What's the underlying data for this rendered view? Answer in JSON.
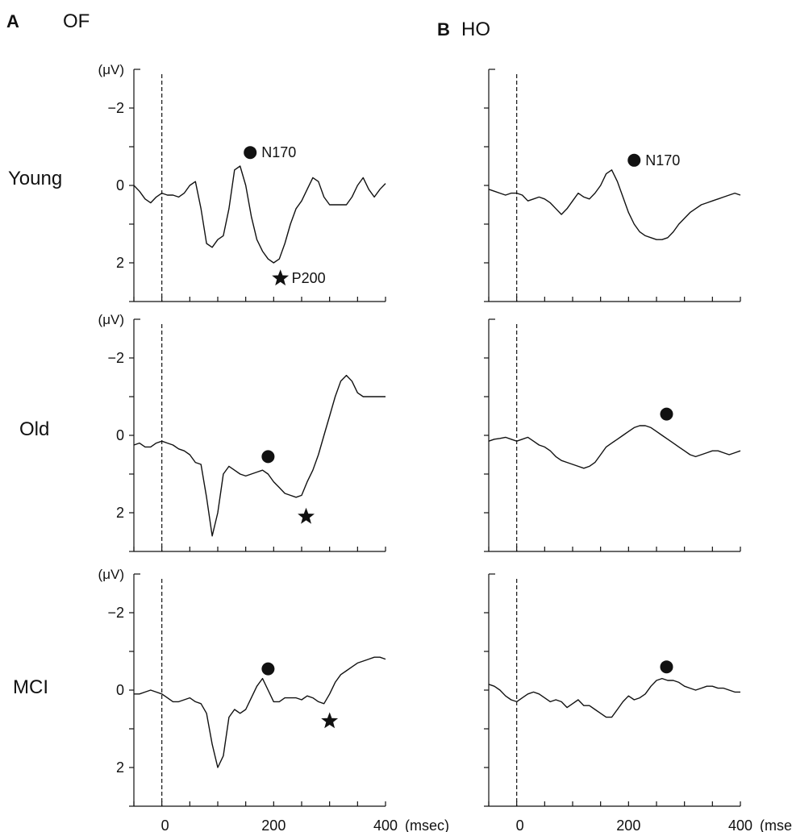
{
  "panels": [
    {
      "letter": "A",
      "condition": "OF"
    },
    {
      "letter": "B",
      "condition": "HO"
    }
  ],
  "rows": [
    "Young",
    "Old",
    "MCI"
  ],
  "y_unit": "(μV)",
  "x_unit": "(msec)",
  "x_tick_labels": [
    "0",
    "200",
    "400"
  ],
  "y_tick_labels": [
    "−2",
    "0",
    "2"
  ],
  "peak_labels": {
    "n170": "N170",
    "p200": "P200"
  },
  "colors": {
    "line": "#111111",
    "marker": "#111111"
  },
  "chart_data": {
    "type": "line",
    "title": "",
    "xlabel": "(msec)",
    "ylabel": "(μV)",
    "xlim": [
      -50,
      400
    ],
    "ylim": [
      3,
      -3
    ],
    "y_axis_inverted": true,
    "onset_marker_ms": 0,
    "panels": [
      {
        "condition": "OF",
        "row": "Young",
        "x": [
          -50,
          -40,
          -30,
          -20,
          -10,
          0,
          10,
          20,
          30,
          40,
          50,
          60,
          70,
          80,
          90,
          100,
          110,
          120,
          130,
          140,
          150,
          160,
          170,
          180,
          190,
          200,
          210,
          220,
          230,
          240,
          250,
          260,
          270,
          280,
          290,
          300,
          310,
          320,
          330,
          340,
          350,
          360,
          370,
          380,
          390,
          400
        ],
        "y": [
          0.0,
          0.15,
          0.35,
          0.45,
          0.3,
          0.2,
          0.25,
          0.25,
          0.3,
          0.2,
          0.0,
          -0.1,
          0.6,
          1.5,
          1.6,
          1.4,
          1.3,
          0.6,
          -0.4,
          -0.5,
          0.0,
          0.8,
          1.4,
          1.7,
          1.9,
          2.0,
          1.9,
          1.5,
          1.0,
          0.6,
          0.4,
          0.1,
          -0.2,
          -0.1,
          0.3,
          0.5,
          0.5,
          0.5,
          0.5,
          0.3,
          0.0,
          -0.2,
          0.1,
          0.3,
          0.1,
          -0.05
        ],
        "markers": [
          {
            "kind": "circle",
            "x": 158,
            "y": -0.85,
            "label": "N170"
          },
          {
            "kind": "star",
            "x": 212,
            "y": 2.4,
            "label": "P200"
          }
        ]
      },
      {
        "condition": "HO",
        "row": "Young",
        "x": [
          -50,
          -40,
          -30,
          -20,
          -10,
          0,
          10,
          20,
          30,
          40,
          50,
          60,
          70,
          80,
          90,
          100,
          110,
          120,
          130,
          140,
          150,
          160,
          170,
          180,
          190,
          200,
          210,
          220,
          230,
          240,
          250,
          260,
          270,
          280,
          290,
          300,
          310,
          320,
          330,
          340,
          350,
          360,
          370,
          380,
          390,
          400
        ],
        "y": [
          0.1,
          0.15,
          0.2,
          0.25,
          0.2,
          0.2,
          0.25,
          0.4,
          0.35,
          0.3,
          0.35,
          0.45,
          0.6,
          0.75,
          0.6,
          0.4,
          0.2,
          0.3,
          0.35,
          0.2,
          0.0,
          -0.3,
          -0.4,
          -0.1,
          0.3,
          0.7,
          1.0,
          1.2,
          1.3,
          1.35,
          1.4,
          1.4,
          1.35,
          1.2,
          1.0,
          0.85,
          0.7,
          0.6,
          0.5,
          0.45,
          0.4,
          0.35,
          0.3,
          0.25,
          0.2,
          0.25
        ],
        "markers": [
          {
            "kind": "circle",
            "x": 210,
            "y": -0.65,
            "label": "N170"
          }
        ]
      },
      {
        "condition": "OF",
        "row": "Old",
        "x": [
          -50,
          -40,
          -30,
          -20,
          -10,
          0,
          10,
          20,
          30,
          40,
          50,
          60,
          70,
          80,
          90,
          100,
          110,
          120,
          130,
          140,
          150,
          160,
          170,
          180,
          190,
          200,
          210,
          220,
          230,
          240,
          250,
          260,
          270,
          280,
          290,
          300,
          310,
          320,
          330,
          340,
          350,
          360,
          370,
          380,
          390,
          400
        ],
        "y": [
          0.25,
          0.2,
          0.3,
          0.3,
          0.2,
          0.15,
          0.2,
          0.25,
          0.35,
          0.4,
          0.5,
          0.7,
          0.75,
          1.6,
          2.6,
          2.0,
          1.0,
          0.8,
          0.9,
          1.0,
          1.05,
          1.0,
          0.95,
          0.9,
          1.0,
          1.2,
          1.35,
          1.5,
          1.55,
          1.6,
          1.55,
          1.2,
          0.9,
          0.5,
          0.0,
          -0.5,
          -1.0,
          -1.4,
          -1.55,
          -1.4,
          -1.1,
          -1.0,
          -1.0,
          -1.0,
          -1.0,
          -1.0
        ],
        "markers": [
          {
            "kind": "circle",
            "x": 190,
            "y": 0.55,
            "label": ""
          },
          {
            "kind": "star",
            "x": 258,
            "y": 2.1,
            "label": ""
          }
        ]
      },
      {
        "condition": "HO",
        "row": "Old",
        "x": [
          -50,
          -40,
          -30,
          -20,
          -10,
          0,
          10,
          20,
          30,
          40,
          50,
          60,
          70,
          80,
          90,
          100,
          110,
          120,
          130,
          140,
          150,
          160,
          170,
          180,
          190,
          200,
          210,
          220,
          230,
          240,
          250,
          260,
          270,
          280,
          290,
          300,
          310,
          320,
          330,
          340,
          350,
          360,
          370,
          380,
          390,
          400
        ],
        "y": [
          0.15,
          0.1,
          0.08,
          0.05,
          0.1,
          0.15,
          0.1,
          0.05,
          0.15,
          0.25,
          0.3,
          0.4,
          0.55,
          0.65,
          0.7,
          0.75,
          0.8,
          0.85,
          0.8,
          0.7,
          0.5,
          0.3,
          0.2,
          0.1,
          0.0,
          -0.1,
          -0.2,
          -0.25,
          -0.25,
          -0.2,
          -0.1,
          0.0,
          0.1,
          0.2,
          0.3,
          0.4,
          0.5,
          0.55,
          0.5,
          0.45,
          0.4,
          0.4,
          0.45,
          0.5,
          0.45,
          0.4
        ],
        "markers": [
          {
            "kind": "circle",
            "x": 268,
            "y": -0.55,
            "label": ""
          }
        ]
      },
      {
        "condition": "OF",
        "row": "MCI",
        "x": [
          -50,
          -40,
          -30,
          -20,
          -10,
          0,
          10,
          20,
          30,
          40,
          50,
          60,
          70,
          80,
          90,
          100,
          110,
          120,
          130,
          140,
          150,
          160,
          170,
          180,
          190,
          200,
          210,
          220,
          230,
          240,
          250,
          260,
          270,
          280,
          290,
          300,
          310,
          320,
          330,
          340,
          350,
          360,
          370,
          380,
          390,
          400
        ],
        "y": [
          0.1,
          0.1,
          0.05,
          0.0,
          0.05,
          0.1,
          0.2,
          0.3,
          0.3,
          0.25,
          0.2,
          0.3,
          0.35,
          0.6,
          1.4,
          2.0,
          1.7,
          0.7,
          0.5,
          0.6,
          0.5,
          0.2,
          -0.1,
          -0.3,
          0.0,
          0.3,
          0.3,
          0.2,
          0.2,
          0.2,
          0.25,
          0.15,
          0.2,
          0.3,
          0.35,
          0.1,
          -0.2,
          -0.4,
          -0.5,
          -0.6,
          -0.7,
          -0.75,
          -0.8,
          -0.85,
          -0.85,
          -0.8
        ],
        "markers": [
          {
            "kind": "circle",
            "x": 190,
            "y": -0.55,
            "label": ""
          },
          {
            "kind": "star",
            "x": 300,
            "y": 0.8,
            "label": ""
          }
        ]
      },
      {
        "condition": "HO",
        "row": "MCI",
        "x": [
          -50,
          -40,
          -30,
          -20,
          -10,
          0,
          10,
          20,
          30,
          40,
          50,
          60,
          70,
          80,
          90,
          100,
          110,
          120,
          130,
          140,
          150,
          160,
          170,
          180,
          190,
          200,
          210,
          220,
          230,
          240,
          250,
          260,
          270,
          280,
          290,
          300,
          310,
          320,
          330,
          340,
          350,
          360,
          370,
          380,
          390,
          400
        ],
        "y": [
          -0.15,
          -0.1,
          0.0,
          0.15,
          0.25,
          0.3,
          0.2,
          0.1,
          0.05,
          0.1,
          0.2,
          0.3,
          0.25,
          0.3,
          0.45,
          0.35,
          0.25,
          0.4,
          0.4,
          0.5,
          0.6,
          0.7,
          0.7,
          0.5,
          0.3,
          0.15,
          0.25,
          0.2,
          0.1,
          -0.1,
          -0.25,
          -0.3,
          -0.25,
          -0.25,
          -0.2,
          -0.1,
          -0.05,
          0.0,
          -0.05,
          -0.1,
          -0.1,
          -0.05,
          -0.05,
          0.0,
          0.05,
          0.05
        ],
        "markers": [
          {
            "kind": "circle",
            "x": 268,
            "y": -0.6,
            "label": ""
          }
        ]
      }
    ]
  }
}
